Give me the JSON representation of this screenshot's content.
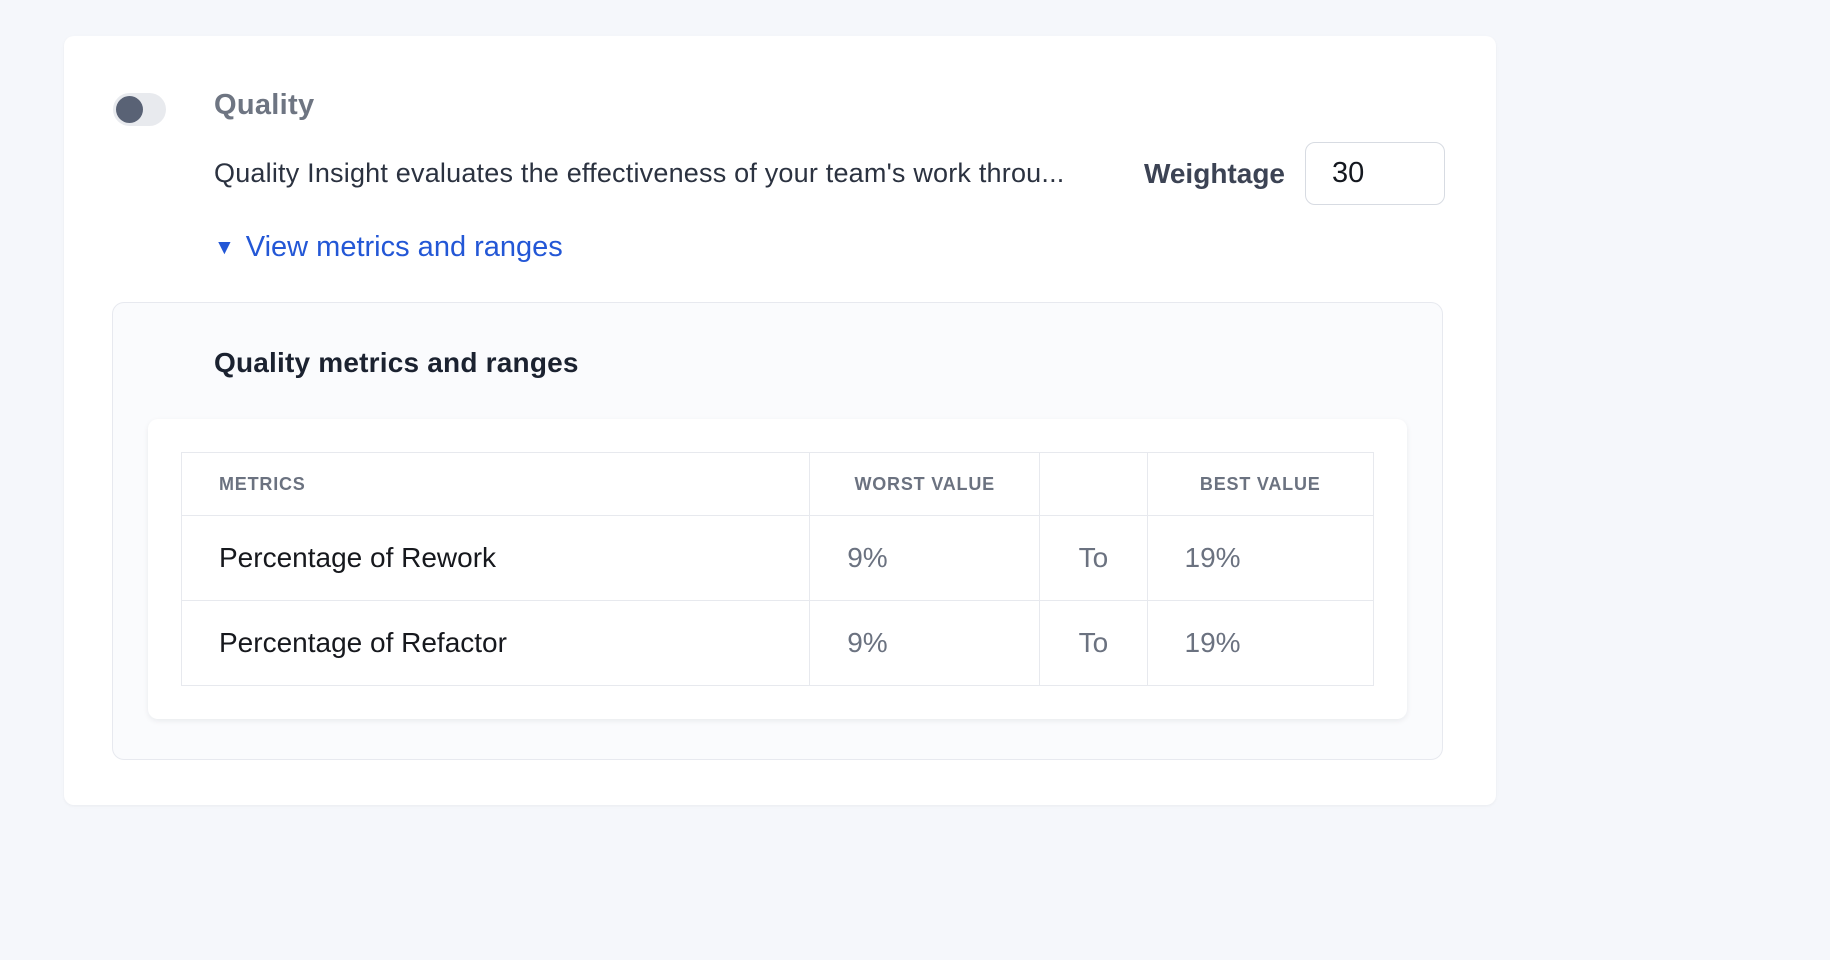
{
  "quality": {
    "title": "Quality",
    "description": "Quality Insight evaluates the effectiveness of your team's work throu...",
    "weightage_label": "Weightage",
    "weightage_value": "30",
    "link_icon": "▼",
    "link_label": "View metrics and ranges",
    "toggle_knob_position": "left"
  },
  "metrics": {
    "heading": "Quality metrics and ranges",
    "table": {
      "headers": [
        "METRICS",
        "WORST VALUE",
        "",
        "BEST VALUE"
      ],
      "rows": [
        {
          "metric": "Percentage of Rework",
          "worst": "9%",
          "to": "To",
          "best": "19%"
        },
        {
          "metric": "Percentage of Refactor",
          "worst": "9%",
          "to": "To",
          "best": "19%"
        }
      ]
    }
  },
  "colors": {
    "page_background": "#f5f7fb",
    "panel_background": "#fafbfd",
    "border": "#e7e9ee",
    "accent_blue": "#2357d6",
    "toggle_knob": "#596275",
    "toggle_track": "#e8eaee"
  }
}
